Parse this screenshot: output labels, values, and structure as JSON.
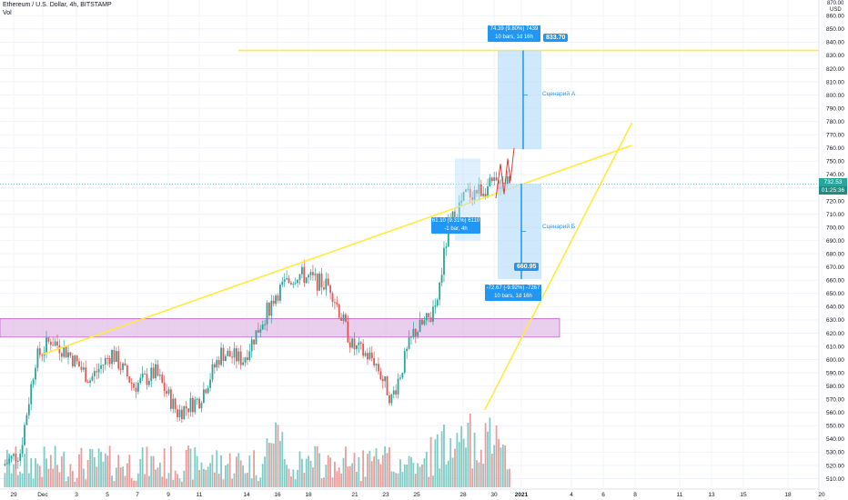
{
  "header": {
    "title": "Ethereum / U.S. Dollar, 4h, BITSTAMP",
    "volume_label": "Vol"
  },
  "axis": {
    "currency": "USD",
    "top_label": "870.00"
  },
  "colors": {
    "up": "#26a69a",
    "down": "#ef5350",
    "vol_up": "#80cbc4",
    "vol_down": "#ef9a9a",
    "trendline": "#ffeb3b",
    "zone": "#e1bee7",
    "projection": "#2196f3"
  },
  "chart_data": {
    "type": "candlestick",
    "ylim": [
      505,
      870
    ],
    "y_ticks": [
      510,
      520,
      530,
      540,
      550,
      560,
      570,
      580,
      590,
      600,
      610,
      620,
      630,
      640,
      650,
      660,
      670,
      680,
      690,
      700,
      710,
      720,
      730,
      740,
      750,
      760,
      770,
      780,
      790,
      800,
      810,
      820,
      830,
      840,
      850,
      860
    ],
    "x_ticks": [
      "29",
      "Dec",
      "3",
      "5",
      "7",
      "9",
      "11",
      "14",
      "16",
      "18",
      "21",
      "23",
      "25",
      "28",
      "30",
      "2021",
      "4",
      "6",
      "8",
      "11",
      "13",
      "15",
      "18",
      "20"
    ],
    "current_price": "732.53",
    "countdown": "01:25:36",
    "resistance_level": 833.7,
    "support_zone": [
      617,
      631
    ],
    "trendline_upper": {
      "from": [
        1.0,
        604
      ],
      "to": [
        17.9,
        762
      ]
    },
    "trendline_lower": {
      "from": [
        13.7,
        562
      ],
      "to": [
        17.9,
        779
      ]
    },
    "projection_up": {
      "stats": "74.39 (9.80%) 7439",
      "bars": "10 bars, 1d 16h",
      "target": "833.70",
      "scenario": "Сценарий А"
    },
    "projection_down": {
      "stats": "-72.67 (-9.92%) -7267",
      "bars": "10 bars, 1d 16h",
      "target": "660.95",
      "scenario": "Сценарий Б"
    },
    "measure_note": {
      "stats": "61.10 (9.31%) 6110",
      "bars": "-1 bar, 4h"
    }
  }
}
